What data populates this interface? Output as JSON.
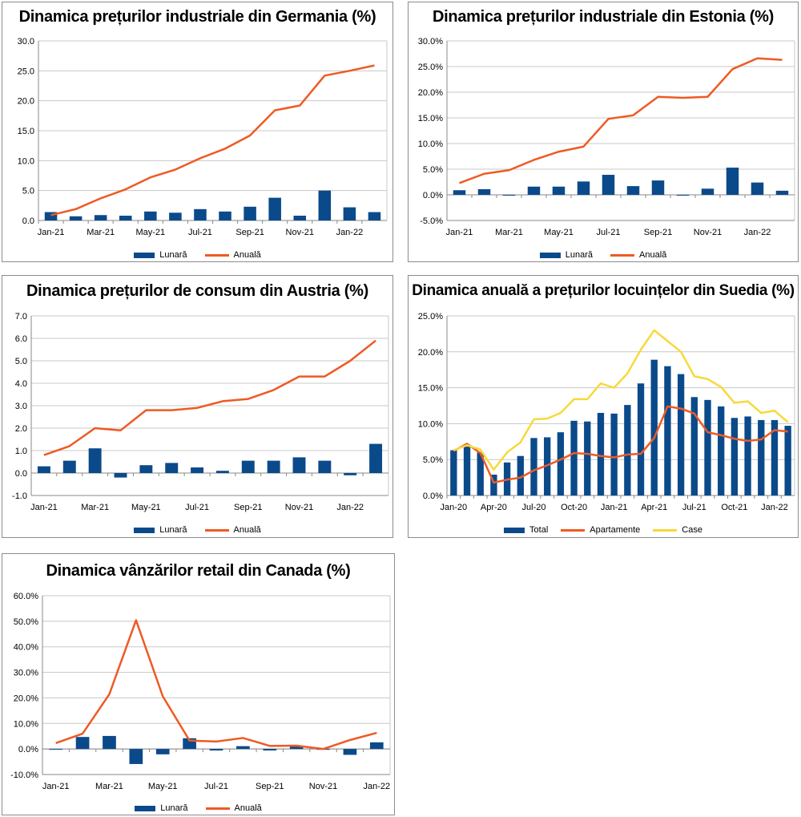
{
  "colors": {
    "bar": "#0b4a8a",
    "line": "#ee5a24",
    "yellow": "#f7d93b",
    "grid": "#c8c8c8"
  },
  "chart_data": [
    {
      "id": "germania",
      "type": "bar+line",
      "title": "Dinamica prețurilor industriale din Germania (%)",
      "categories": [
        "Jan-21",
        "Feb-21",
        "Mar-21",
        "Apr-21",
        "May-21",
        "Jun-21",
        "Jul-21",
        "Aug-21",
        "Sep-21",
        "Oct-21",
        "Nov-21",
        "Dec-21",
        "Jan-22",
        "Feb-22"
      ],
      "tick_labels": [
        "Jan-21",
        "",
        "Mar-21",
        "",
        "May-21",
        "",
        "Jul-21",
        "",
        "Sep-21",
        "",
        "Nov-21",
        "",
        "Jan-22",
        ""
      ],
      "series": [
        {
          "name": "Lunară",
          "kind": "bar",
          "color": "#0b4a8a",
          "values": [
            1.4,
            0.7,
            0.9,
            0.8,
            1.5,
            1.3,
            1.9,
            1.5,
            2.3,
            3.8,
            0.8,
            5.0,
            2.2,
            1.4
          ]
        },
        {
          "name": "Anuală",
          "kind": "line",
          "color": "#ee5a24",
          "values": [
            0.9,
            1.9,
            3.7,
            5.2,
            7.2,
            8.5,
            10.4,
            12.0,
            14.2,
            18.4,
            19.2,
            24.2,
            25.0,
            25.9
          ]
        }
      ],
      "ylim": [
        0,
        30
      ],
      "yticks": [
        0,
        5,
        10,
        15,
        20,
        25,
        30
      ],
      "yformat": "1dp"
    },
    {
      "id": "estonia",
      "type": "bar+line",
      "title": "Dinamica prețurilor industriale din Estonia (%)",
      "categories": [
        "Jan-21",
        "Feb-21",
        "Mar-21",
        "Apr-21",
        "May-21",
        "Jun-21",
        "Jul-21",
        "Aug-21",
        "Sep-21",
        "Oct-21",
        "Nov-21",
        "Dec-21",
        "Jan-22",
        "Feb-22"
      ],
      "tick_labels": [
        "Jan-21",
        "",
        "Mar-21",
        "",
        "May-21",
        "",
        "Jul-21",
        "",
        "Sep-21",
        "",
        "Nov-21",
        "",
        "Jan-22",
        ""
      ],
      "series": [
        {
          "name": "Lunară",
          "kind": "bar",
          "color": "#0b4a8a",
          "values": [
            0.9,
            1.1,
            -0.1,
            1.6,
            1.6,
            2.6,
            3.9,
            1.7,
            2.8,
            -0.1,
            1.2,
            5.3,
            2.4,
            0.8
          ]
        },
        {
          "name": "Anuală",
          "kind": "line",
          "color": "#ee5a24",
          "values": [
            2.3,
            4.1,
            4.8,
            6.8,
            8.4,
            9.4,
            14.8,
            15.5,
            19.1,
            18.9,
            19.1,
            24.5,
            26.6,
            26.3
          ]
        }
      ],
      "ylim": [
        -5,
        30
      ],
      "yticks": [
        -5,
        0,
        5,
        10,
        15,
        20,
        25,
        30
      ],
      "yformat": "pct"
    },
    {
      "id": "austria",
      "type": "bar+line",
      "title": "Dinamica prețurilor de consum din Austria (%)",
      "categories": [
        "Jan-21",
        "Feb-21",
        "Mar-21",
        "Apr-21",
        "May-21",
        "Jun-21",
        "Jul-21",
        "Aug-21",
        "Sep-21",
        "Oct-21",
        "Nov-21",
        "Dec-21",
        "Jan-22",
        "Feb-22"
      ],
      "tick_labels": [
        "Jan-21",
        "",
        "Mar-21",
        "",
        "May-21",
        "",
        "Jul-21",
        "",
        "Sep-21",
        "",
        "Nov-21",
        "",
        "Jan-22",
        ""
      ],
      "series": [
        {
          "name": "Lunară",
          "kind": "bar",
          "color": "#0b4a8a",
          "values": [
            0.3,
            0.55,
            1.1,
            -0.2,
            0.35,
            0.45,
            0.25,
            0.1,
            0.55,
            0.55,
            0.7,
            0.55,
            -0.1,
            1.3
          ]
        },
        {
          "name": "Anuală",
          "kind": "line",
          "color": "#ee5a24",
          "values": [
            0.8,
            1.2,
            2.0,
            1.9,
            2.8,
            2.8,
            2.9,
            3.2,
            3.3,
            3.7,
            4.3,
            4.3,
            5.0,
            5.9
          ]
        }
      ],
      "ylim": [
        -1,
        7
      ],
      "yticks": [
        -1,
        0,
        1,
        2,
        3,
        4,
        5,
        6,
        7
      ],
      "yformat": "1dp"
    },
    {
      "id": "suedia",
      "type": "bar+line",
      "title": "Dinamica anuală a prețurilor locuințelor din Suedia (%)",
      "categories": [
        "Jan-20",
        "Feb-20",
        "Mar-20",
        "Apr-20",
        "May-20",
        "Jun-20",
        "Jul-20",
        "Aug-20",
        "Sep-20",
        "Oct-20",
        "Nov-20",
        "Dec-20",
        "Jan-21",
        "Feb-21",
        "Mar-21",
        "Apr-21",
        "May-21",
        "Jun-21",
        "Jul-21",
        "Aug-21",
        "Sep-21",
        "Oct-21",
        "Nov-21",
        "Dec-21",
        "Jan-22",
        "Feb-22"
      ],
      "tick_labels": [
        "Jan-20",
        "",
        "",
        "Apr-20",
        "",
        "",
        "Jul-20",
        "",
        "",
        "Oct-20",
        "",
        "",
        "Jan-21",
        "",
        "",
        "Apr-21",
        "",
        "",
        "Jul-21",
        "",
        "",
        "Oct-21",
        "",
        "",
        "Jan-22",
        ""
      ],
      "series": [
        {
          "name": "Total",
          "kind": "bar",
          "color": "#0b4a8a",
          "values": [
            6.3,
            6.8,
            6.0,
            2.9,
            4.6,
            5.5,
            8.0,
            8.1,
            8.8,
            10.4,
            10.3,
            11.5,
            11.4,
            12.6,
            15.6,
            18.9,
            18.0,
            16.9,
            13.7,
            13.3,
            12.4,
            10.8,
            11.0,
            10.5,
            10.5,
            9.7
          ]
        },
        {
          "name": "Apartamente",
          "kind": "line",
          "color": "#ee5a24",
          "values": [
            6.2,
            7.2,
            5.9,
            1.8,
            2.2,
            2.5,
            3.5,
            4.2,
            5.0,
            5.9,
            5.8,
            5.5,
            5.3,
            5.7,
            5.8,
            8.0,
            12.4,
            12.1,
            11.4,
            8.8,
            8.4,
            7.9,
            7.6,
            7.8,
            9.1,
            8.9
          ]
        },
        {
          "name": "Case",
          "kind": "line",
          "color": "#f7d93b",
          "values": [
            6.3,
            7.0,
            6.4,
            3.6,
            6.0,
            7.4,
            10.6,
            10.7,
            11.5,
            13.4,
            13.4,
            15.6,
            15.0,
            17.0,
            20.3,
            23.0,
            21.5,
            20.0,
            16.6,
            16.2,
            15.1,
            12.9,
            13.1,
            11.5,
            11.8,
            10.2
          ]
        }
      ],
      "ylim": [
        0,
        25
      ],
      "yticks": [
        0,
        5,
        10,
        15,
        20,
        25
      ],
      "yformat": "pct"
    },
    {
      "id": "canada",
      "type": "bar+line",
      "title": "Dinamica vânzărilor retail din Canada (%)",
      "categories": [
        "Jan-21",
        "Feb-21",
        "Mar-21",
        "Apr-21",
        "May-21",
        "Jun-21",
        "Jul-21",
        "Aug-21",
        "Sep-21",
        "Oct-21",
        "Nov-21",
        "Dec-21",
        "Jan-22"
      ],
      "tick_labels": [
        "Jan-21",
        "",
        "Mar-21",
        "",
        "May-21",
        "",
        "Jul-21",
        "",
        "Sep-21",
        "",
        "Nov-21",
        "",
        "Jan-22"
      ],
      "series": [
        {
          "name": "Lunară",
          "kind": "bar",
          "color": "#0b4a8a",
          "values": [
            -0.2,
            4.7,
            5.1,
            -5.9,
            -2.1,
            4.2,
            -0.6,
            1.1,
            -0.6,
            1.0,
            0.0,
            -2.3,
            2.6
          ]
        },
        {
          "name": "Anuală",
          "kind": "line",
          "color": "#ee5a24",
          "values": [
            2.3,
            6.0,
            21.4,
            50.4,
            20.6,
            3.3,
            2.9,
            4.3,
            1.2,
            1.3,
            0.0,
            3.5,
            6.3
          ]
        }
      ],
      "ylim": [
        -10,
        60
      ],
      "yticks": [
        -10,
        0,
        10,
        20,
        30,
        40,
        50,
        60
      ],
      "yformat": "pct"
    }
  ]
}
